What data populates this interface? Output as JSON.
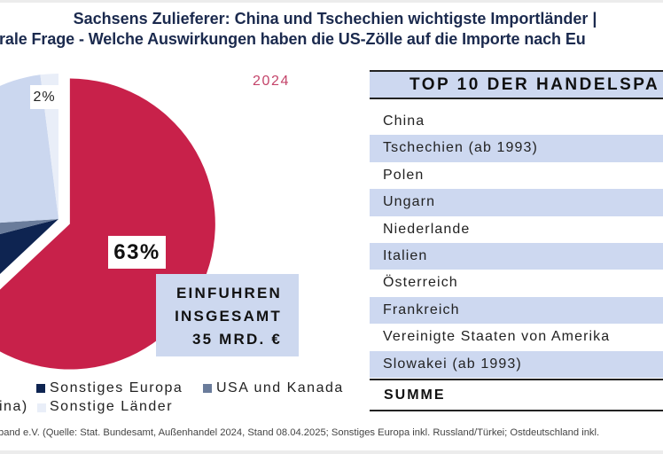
{
  "title": {
    "line1": "Sachsens Zulieferer: China und Tschechien wichtigste Importländer |",
    "line2": "rale Frage - Welche Auswirkungen haben die US-Zölle auf die Importe nach Eu"
  },
  "chart_data": {
    "type": "pie",
    "title": "2024",
    "slices": [
      {
        "name": "",
        "value": 63,
        "label": "63%",
        "color": "#c8214a",
        "exploded": true
      },
      {
        "name": "Sonstiges Europa",
        "value": 8,
        "label": "",
        "color": "#0e2451",
        "exploded": false
      },
      {
        "name": "USA und Kanada",
        "value": 3,
        "label": "",
        "color": "#6a7c9b",
        "exploded": false
      },
      {
        "name": "",
        "value": 24,
        "label": "",
        "color": "#cbd7ef",
        "exploded": false
      },
      {
        "name": "Sonstige Länder",
        "value": 2,
        "label": "2%",
        "color": "#e9eef8",
        "exploded": false
      }
    ],
    "legend": [
      {
        "label": "Sonstiges Europa",
        "color": "#0e2451"
      },
      {
        "label": "USA und Kanada",
        "color": "#6a7c9b"
      },
      {
        "label": "ina)",
        "color": null
      },
      {
        "label": "Sonstige Länder",
        "color": "#e9eef8"
      }
    ],
    "legend_position": "bottom"
  },
  "total_box": {
    "lines": [
      "EINFUHREN",
      "INSGESAMT",
      "35 MRD. €"
    ]
  },
  "table": {
    "header": "TOP 10 DER HANDELSPA",
    "rows": [
      "China",
      "Tschechien (ab 1993)",
      "Polen",
      "Ungarn",
      "Niederlande",
      "Italien",
      "Österreich",
      "Frankreich",
      "Vereinigte Staaten von Amerika",
      "Slowakei (ab 1993)"
    ],
    "sum_label": "SUMME"
  },
  "footnote": "band e.V. (Quelle: Stat. Bundesamt, Außenhandel 2024, Stand 08.04.2025; Sonstiges Europa inkl. Russland/Türkei; Ostdeutschland inkl.",
  "colors": {
    "title": "#1b2a4e",
    "year": "#c4446a",
    "table_stripe": "#cdd8f0",
    "total_box": "#cdd8ef",
    "accent_red": "#c8214a"
  }
}
